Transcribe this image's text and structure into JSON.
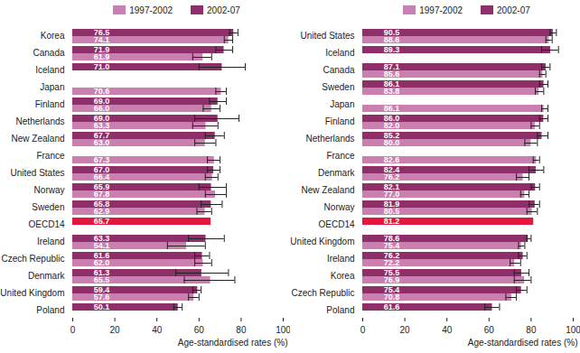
{
  "chart_data": [
    {
      "type": "bar",
      "orientation": "horizontal",
      "data_labels": true,
      "legend": "top",
      "x_label": "Age-standardised rates (%)",
      "xlim": [
        0,
        100
      ],
      "xticks": [
        0,
        20,
        40,
        60,
        80,
        100
      ],
      "categories": [
        "Korea",
        "Canada",
        "Iceland",
        "Japan",
        "Finland",
        "Netherlands",
        "New Zealand",
        "France",
        "United States",
        "Norway",
        "Sweden",
        "OECD14",
        "Ireland",
        "Czech Republic",
        "Denmark",
        "United Kingdom",
        "Poland"
      ],
      "series": [
        {
          "name": "1997-2002",
          "color": "#c97faf",
          "values": [
            74.1,
            61.9,
            null,
            70.6,
            66.0,
            63.3,
            63.0,
            67.3,
            66.4,
            67.8,
            62.9,
            null,
            54.1,
            62.0,
            65.5,
            57.6,
            null
          ],
          "value_labels": [
            "74.1",
            "61.9",
            null,
            "70.6",
            "66.0",
            "63.3",
            "63.0",
            "67.3",
            "66.4",
            "67.8",
            "62.9",
            null,
            "54.1",
            "62.0",
            "65.5",
            "57.6",
            null
          ],
          "error_low": [
            72,
            57,
            null,
            68,
            62,
            57,
            58,
            64,
            63,
            63,
            59,
            null,
            45,
            58,
            53,
            55,
            null
          ],
          "error_high": [
            76,
            66,
            null,
            73,
            70,
            69,
            68,
            70,
            69,
            73,
            66,
            null,
            63,
            66,
            77,
            60,
            null
          ]
        },
        {
          "name": "2002-07",
          "color": "#8e2f69",
          "colors": [
            "#8e2f69",
            "#8e2f69",
            "#8e2f69",
            "#8e2f69",
            "#8e2f69",
            "#8e2f69",
            "#8e2f69",
            "#8e2f69",
            "#8e2f69",
            "#8e2f69",
            "#8e2f69",
            "#e3173e",
            "#8e2f69",
            "#8e2f69",
            "#8e2f69",
            "#8e2f69",
            "#8e2f69"
          ],
          "values": [
            76.5,
            71.9,
            71.0,
            null,
            69.0,
            69.0,
            67.7,
            null,
            67.0,
            65.9,
            65.8,
            65.7,
            63.3,
            61.6,
            61.3,
            59.4,
            50.1
          ],
          "value_labels": [
            "76.5",
            "71.9",
            "71.0",
            null,
            "69.0",
            "69.0",
            "67.7",
            null,
            "67.0",
            "65.9",
            "65.8",
            "65.7",
            "63.3",
            "61.6",
            "61.3",
            "59.4",
            "50.1"
          ],
          "error_low": [
            74.5,
            68,
            60,
            null,
            65,
            58,
            63,
            null,
            64,
            60,
            61,
            null,
            55,
            58,
            49,
            57,
            48
          ],
          "error_high": [
            78.5,
            76,
            82,
            null,
            73,
            79,
            72,
            null,
            70,
            73,
            71,
            null,
            72,
            65,
            74,
            61,
            52
          ]
        }
      ]
    },
    {
      "type": "bar",
      "orientation": "horizontal",
      "data_labels": true,
      "legend": "top",
      "x_label": "Age-standardised rates (%)",
      "xlim": [
        0,
        100
      ],
      "xticks": [
        0,
        20,
        40,
        60,
        80,
        100
      ],
      "categories": [
        "United States",
        "Iceland",
        "Canada",
        "Sweden",
        "Japan",
        "Finland",
        "Netherlands",
        "France",
        "Denmark",
        "New Zealand",
        "Norway",
        "OECD14",
        "United Kingdom",
        "Ireland",
        "Korea",
        "Czech Republic",
        "Poland"
      ],
      "series": [
        {
          "name": "1997-2002",
          "color": "#c97faf",
          "values": [
            88.6,
            null,
            85.6,
            83.8,
            86.1,
            82.0,
            80.0,
            82.6,
            76.2,
            77.0,
            80.5,
            null,
            75.4,
            72.2,
            76.9,
            70.8,
            null
          ],
          "value_labels": [
            "88.6",
            null,
            "85.6",
            "83.8",
            "86.1",
            "82.0",
            "80.0",
            "82.6",
            "76.2",
            "77.0",
            "80.5",
            null,
            "75.4",
            "72.2",
            "76.9",
            "70.8",
            null
          ],
          "error_low": [
            87,
            null,
            84,
            82,
            85,
            80,
            77,
            81,
            73,
            75,
            78,
            null,
            74,
            70,
            72,
            68,
            null
          ],
          "error_high": [
            90,
            null,
            87,
            86,
            88,
            84,
            83,
            84,
            79,
            79,
            83,
            null,
            77,
            75,
            80,
            73,
            null
          ]
        },
        {
          "name": "2002-07",
          "color": "#8e2f69",
          "colors": [
            "#8e2f69",
            "#8e2f69",
            "#8e2f69",
            "#8e2f69",
            "#8e2f69",
            "#8e2f69",
            "#8e2f69",
            "#8e2f69",
            "#8e2f69",
            "#8e2f69",
            "#8e2f69",
            "#e3173e",
            "#8e2f69",
            "#8e2f69",
            "#8e2f69",
            "#8e2f69",
            "#8e2f69"
          ],
          "values": [
            90.5,
            89.3,
            87.1,
            86.1,
            null,
            86.0,
            85.2,
            null,
            82.4,
            82.1,
            81.9,
            81.2,
            78.6,
            76.2,
            75.5,
            75.4,
            61.6
          ],
          "value_labels": [
            "90.5",
            "89.3",
            "87.1",
            "86.1",
            null,
            "86.0",
            "85.2",
            null,
            "82.4",
            "82.1",
            "81.9",
            "81.2",
            "78.6",
            "76.2",
            "75.5",
            "75.4",
            "61.6"
          ],
          "error_low": [
            89,
            85,
            85,
            84,
            null,
            84,
            83,
            null,
            79,
            80,
            79,
            null,
            78,
            74,
            72,
            73,
            58
          ],
          "error_high": [
            92,
            93,
            89,
            88,
            null,
            88,
            88,
            null,
            86,
            84,
            84,
            null,
            80,
            78,
            79,
            78,
            65
          ]
        }
      ]
    }
  ]
}
